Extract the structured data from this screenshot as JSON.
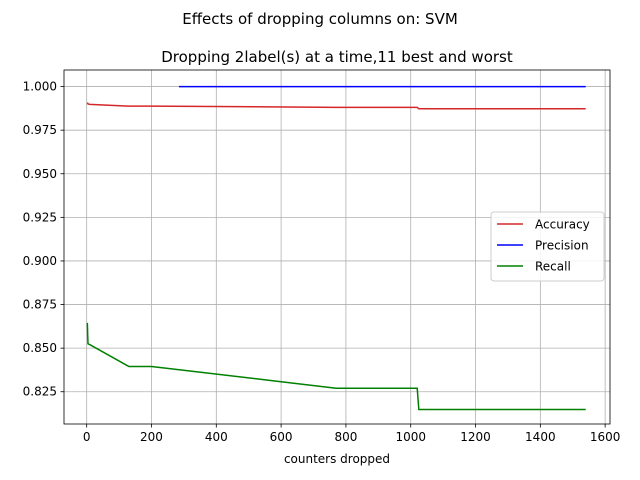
{
  "chart_data": {
    "type": "line",
    "suptitle": "Effects of dropping columns on: SVM",
    "title": "Dropping 2label(s) at a time,11 best and worst",
    "xlabel": "counters dropped",
    "ylabel": "",
    "xlim": [
      -70,
      1615
    ],
    "ylim": [
      0.8065,
      1.0095
    ],
    "xticks": [
      0,
      200,
      400,
      600,
      800,
      1000,
      1200,
      1400,
      1600
    ],
    "yticks": [
      0.825,
      0.85,
      0.875,
      0.9,
      0.925,
      0.95,
      0.975,
      1.0
    ],
    "ytick_labels": [
      "0.825",
      "0.850",
      "0.875",
      "0.900",
      "0.925",
      "0.950",
      "0.975",
      "1.000"
    ],
    "grid": true,
    "legend_position": "center-right",
    "series": [
      {
        "name": "Accuracy",
        "color": "#d62728",
        "points": [
          [
            2,
            0.9908
          ],
          [
            4,
            0.99
          ],
          [
            10,
            0.9898
          ],
          [
            130,
            0.9888
          ],
          [
            200,
            0.9888
          ],
          [
            770,
            0.9881
          ],
          [
            1020,
            0.9881
          ],
          [
            1025,
            0.9873
          ],
          [
            1540,
            0.9873
          ]
        ]
      },
      {
        "name": "Precision",
        "color": "#0000ff",
        "points": [
          [
            285,
            1.0
          ],
          [
            1540,
            1.0
          ]
        ]
      },
      {
        "name": "Recall",
        "color": "#008000",
        "points": [
          [
            2,
            0.8645
          ],
          [
            4,
            0.8525
          ],
          [
            10,
            0.852
          ],
          [
            130,
            0.8395
          ],
          [
            200,
            0.8395
          ],
          [
            770,
            0.827
          ],
          [
            1020,
            0.827
          ],
          [
            1025,
            0.8148
          ],
          [
            1540,
            0.8148
          ]
        ]
      }
    ]
  }
}
